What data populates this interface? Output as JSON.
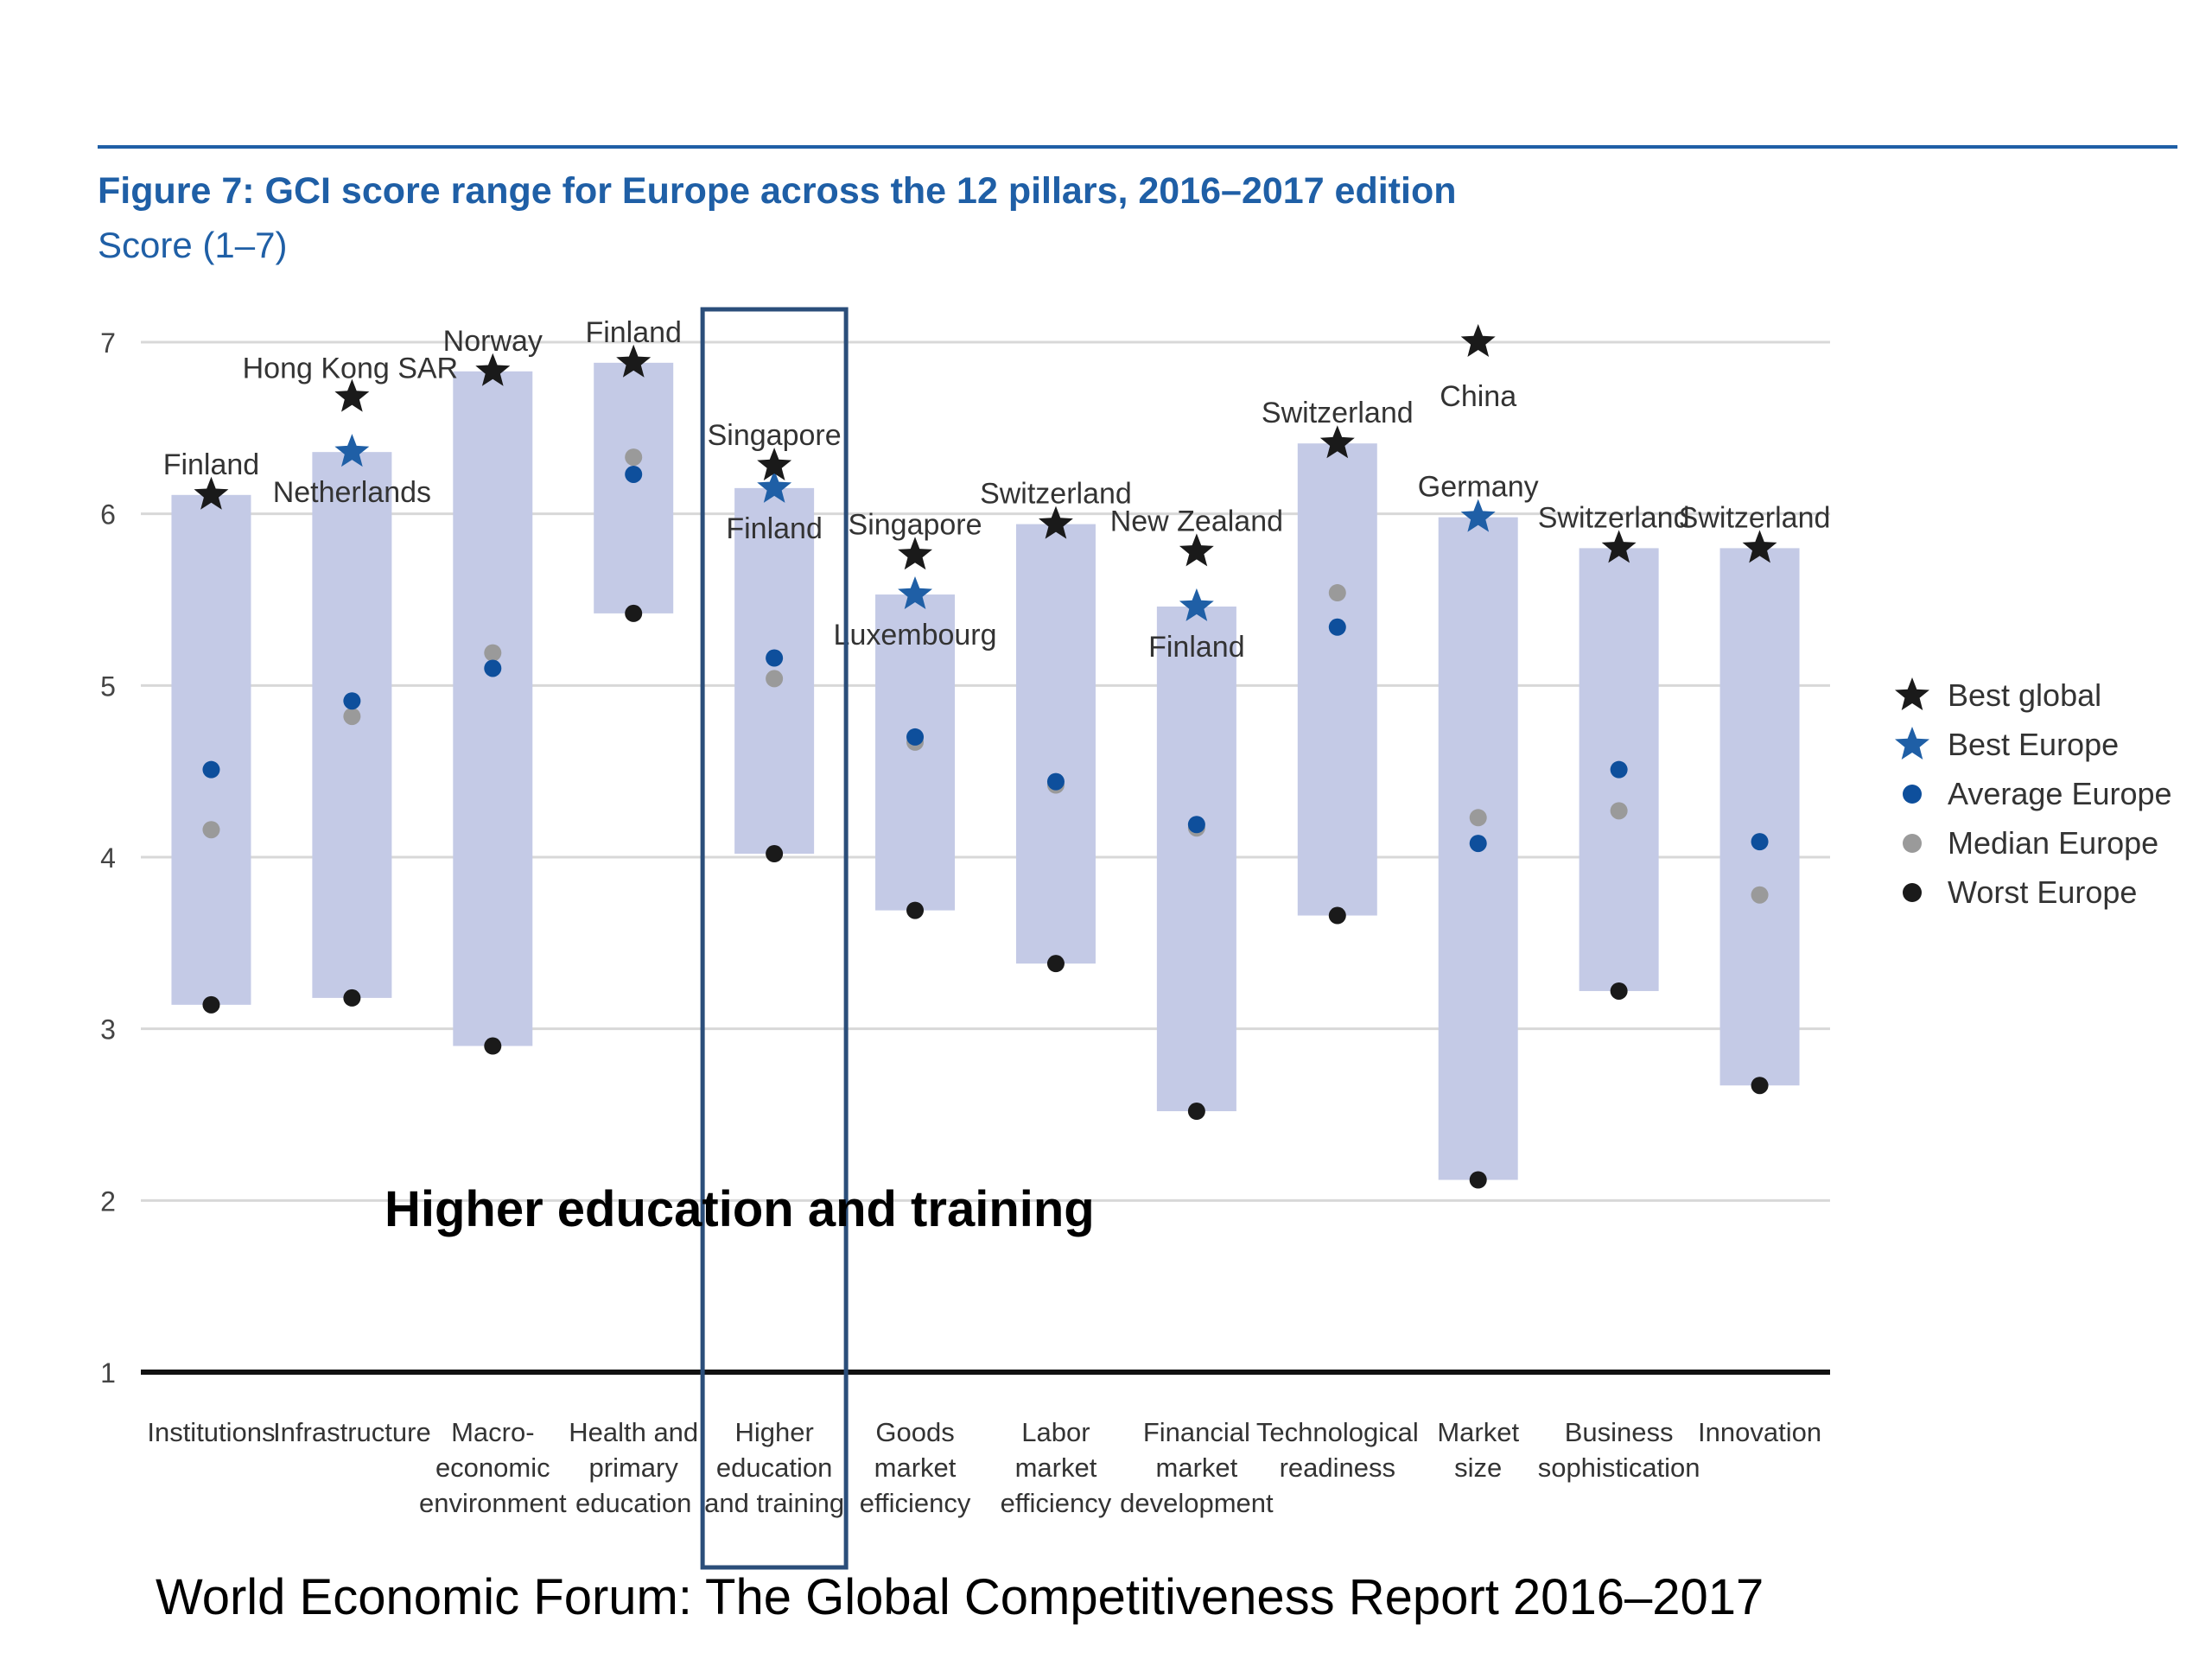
{
  "chart_data": {
    "type": "range",
    "title": "Figure 7: GCI score range for Europe across the 12 pillars, 2016–2017 edition",
    "subtitle": "Score (1–7)",
    "ylim": [
      1,
      7
    ],
    "yticks": [
      1,
      2,
      3,
      4,
      5,
      6,
      7
    ],
    "grid": true,
    "legend_position": "right",
    "categories": [
      [
        "Institutions"
      ],
      [
        "Infrastructure"
      ],
      [
        "Macro-",
        "economic",
        "environment"
      ],
      [
        "Health and",
        "primary",
        "education"
      ],
      [
        "Higher",
        "education",
        "and training"
      ],
      [
        "Goods",
        "market",
        "efficiency"
      ],
      [
        "Labor",
        "market",
        "efficiency"
      ],
      [
        "Financial",
        "market",
        "development"
      ],
      [
        "Technological",
        "readiness"
      ],
      [
        "Market",
        "size"
      ],
      [
        "Business",
        "sophistication"
      ],
      [
        "Innovation"
      ]
    ],
    "series": [
      {
        "name": "Best global",
        "values": [
          6.11,
          6.68,
          6.83,
          6.88,
          6.28,
          5.76,
          5.94,
          5.78,
          6.41,
          7.0,
          5.8,
          5.8
        ]
      },
      {
        "name": "Best Europe",
        "values": [
          6.11,
          6.36,
          6.83,
          6.88,
          6.15,
          5.53,
          5.94,
          5.46,
          6.41,
          5.98,
          5.8,
          5.8
        ]
      },
      {
        "name": "Average Europe",
        "values": [
          4.51,
          4.91,
          5.1,
          6.23,
          5.16,
          4.7,
          4.44,
          4.19,
          5.34,
          4.08,
          4.51,
          4.09
        ]
      },
      {
        "name": "Median Europe",
        "values": [
          4.16,
          4.82,
          5.19,
          6.33,
          5.04,
          4.67,
          4.42,
          4.17,
          5.54,
          4.23,
          4.27,
          3.78
        ]
      },
      {
        "name": "Worst Europe",
        "values": [
          3.14,
          3.18,
          2.9,
          5.42,
          4.02,
          3.69,
          3.38,
          2.52,
          3.66,
          2.12,
          3.22,
          2.67
        ]
      }
    ],
    "annotations": [
      {
        "category": 0,
        "text": "Finland"
      },
      {
        "category": 1,
        "text": "Hong Kong SAR"
      },
      {
        "category": 1,
        "text": "Netherlands"
      },
      {
        "category": 2,
        "text": "Norway"
      },
      {
        "category": 3,
        "text": "Finland"
      },
      {
        "category": 4,
        "text": "Singapore"
      },
      {
        "category": 4,
        "text": "Finland"
      },
      {
        "category": 5,
        "text": "Singapore"
      },
      {
        "category": 5,
        "text": "Luxembourg"
      },
      {
        "category": 6,
        "text": "Switzerland"
      },
      {
        "category": 7,
        "text": "New Zealand"
      },
      {
        "category": 7,
        "text": "Finland"
      },
      {
        "category": 8,
        "text": "Switzerland"
      },
      {
        "category": 9,
        "text": "China"
      },
      {
        "category": 9,
        "text": "Germany"
      },
      {
        "category": 10,
        "text": "Switzerland"
      },
      {
        "category": 11,
        "text": "Switzerland"
      }
    ],
    "highlight_category": 4,
    "highlight_label": "Higher education and training"
  },
  "source": "World Economic Forum: The Global Competitiveness Report 2016–2017",
  "colors": {
    "title": "#1f5fa6",
    "range": "#c4cae6",
    "best_global": "#1a1a1a",
    "best_europe": "#1f5fa6",
    "average": "#0e4f9c",
    "median": "#9a9a9a",
    "worst": "#1a1a1a",
    "highlight_box": "#2b4e7a",
    "grid": "#d8d8d8"
  }
}
